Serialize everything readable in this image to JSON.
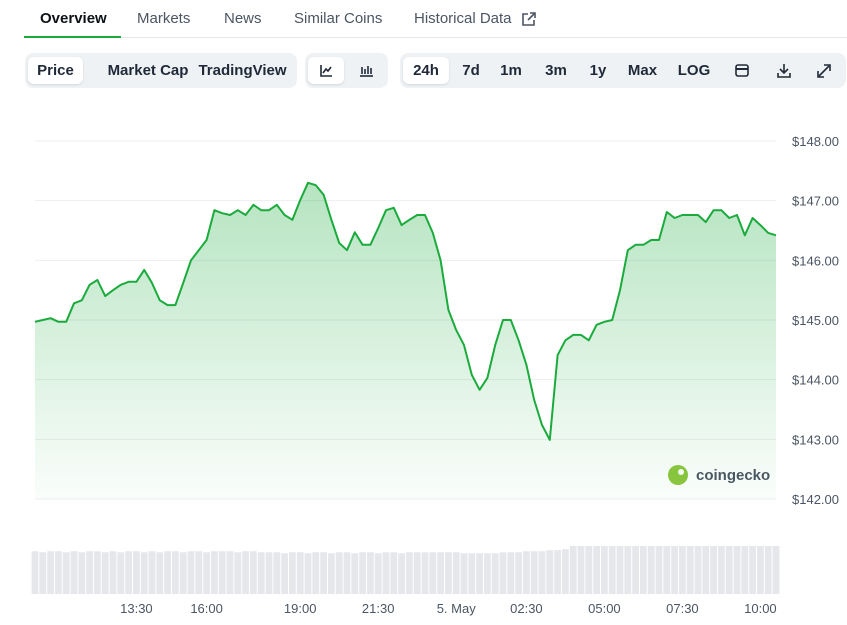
{
  "tabs": [
    "Overview",
    "Markets",
    "News",
    "Similar Coins",
    "Historical Data"
  ],
  "chart_buttons": [
    "Price",
    "Market Cap",
    "TradingView"
  ],
  "range_buttons": [
    "24h",
    "7d",
    "1m",
    "3m",
    "1y",
    "Max",
    "LOG"
  ],
  "watermark": "coingecko",
  "chart_data": {
    "type": "line",
    "color": "#1aab3c",
    "grid": true,
    "ylim": [
      142,
      148
    ],
    "yticks": [
      {
        "value": 142,
        "label": "$142.00"
      },
      {
        "value": 143,
        "label": "$143.00"
      },
      {
        "value": 144,
        "label": "$144.00"
      },
      {
        "value": 145,
        "label": "$145.00"
      },
      {
        "value": 146,
        "label": "$146.00"
      },
      {
        "value": 147,
        "label": "$147.00"
      },
      {
        "value": 148,
        "label": "$148.00"
      }
    ],
    "categories": [
      null,
      null,
      null,
      null,
      null,
      null,
      null,
      null,
      null,
      null,
      null,
      null,
      null,
      "13:30",
      null,
      null,
      null,
      null,
      null,
      null,
      null,
      null,
      "16:00",
      null,
      null,
      null,
      null,
      null,
      null,
      null,
      null,
      null,
      null,
      null,
      "19:00",
      null,
      null,
      null,
      null,
      null,
      null,
      null,
      null,
      null,
      "21:30",
      null,
      null,
      null,
      null,
      null,
      null,
      null,
      null,
      null,
      "5. May",
      null,
      null,
      null,
      null,
      null,
      null,
      null,
      null,
      "02:30",
      null,
      null,
      null,
      null,
      null,
      null,
      null,
      null,
      null,
      "05:00",
      null,
      null,
      null,
      null,
      null,
      null,
      null,
      null,
      null,
      "07:30",
      null,
      null,
      null,
      null,
      null,
      null,
      null,
      null,
      null,
      "10:00",
      null,
      null
    ],
    "values": [
      144.97,
      145.0,
      145.03,
      144.97,
      144.97,
      145.28,
      145.33,
      145.59,
      145.67,
      145.4,
      145.5,
      145.59,
      145.64,
      145.64,
      145.84,
      145.62,
      145.33,
      145.25,
      145.25,
      145.62,
      146.0,
      146.17,
      146.34,
      146.84,
      146.79,
      146.76,
      146.84,
      146.76,
      146.93,
      146.84,
      146.84,
      146.93,
      146.76,
      146.68,
      147.01,
      147.3,
      147.26,
      147.1,
      146.68,
      146.29,
      146.17,
      146.47,
      146.26,
      146.26,
      146.54,
      146.84,
      146.88,
      146.59,
      146.68,
      146.76,
      146.76,
      146.46,
      146.0,
      145.17,
      144.83,
      144.58,
      144.08,
      143.83,
      144.03,
      144.58,
      145.0,
      145.0,
      144.66,
      144.25,
      143.66,
      143.24,
      142.99,
      144.41,
      144.66,
      144.75,
      144.75,
      144.66,
      144.92,
      144.97,
      145.0,
      145.5,
      146.17,
      146.26,
      146.26,
      146.34,
      146.34,
      146.81,
      146.71,
      146.76,
      146.76,
      146.76,
      146.64,
      146.84,
      146.84,
      146.71,
      146.76,
      146.42,
      146.71,
      146.59,
      146.46,
      146.42
    ],
    "volume": [
      41,
      40,
      41,
      41,
      40,
      41,
      40,
      41,
      41,
      40,
      41,
      40,
      41,
      41,
      40,
      41,
      40,
      41,
      41,
      40,
      41,
      41,
      40,
      41,
      41,
      41,
      40,
      41,
      41,
      40,
      40,
      40,
      39,
      40,
      40,
      39,
      40,
      40,
      39,
      40,
      40,
      39,
      40,
      40,
      39,
      40,
      40,
      39,
      40,
      40,
      40,
      40,
      40,
      40,
      40,
      39,
      39,
      39,
      39,
      39,
      40,
      40,
      40,
      41,
      41,
      41,
      42,
      42,
      43,
      46,
      46,
      46,
      46,
      46,
      46,
      46,
      46,
      46,
      46,
      46,
      46,
      46,
      46,
      46,
      46,
      46,
      46,
      46,
      46,
      46,
      46,
      46,
      46,
      46,
      46,
      46
    ]
  }
}
